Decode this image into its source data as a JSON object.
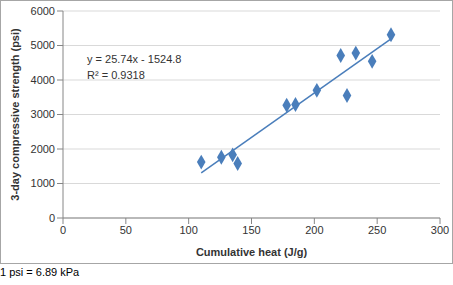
{
  "chart_data": {
    "type": "scatter",
    "x_label": "Cumulative heat (J/g)",
    "y_label": "3-day compressive strength (psi)",
    "x": [
      110,
      126,
      135,
      139,
      178,
      185,
      202,
      221,
      226,
      233,
      246,
      261
    ],
    "values": [
      1620,
      1760,
      1830,
      1580,
      3270,
      3290,
      3700,
      4710,
      3550,
      4780,
      4540,
      5310
    ],
    "color": "#4a7ebb",
    "marker": "diamond",
    "trendline": {
      "x": [
        110,
        261
      ],
      "values": [
        1310,
        5190
      ],
      "color": "#4a7ebb",
      "line_style": "solid"
    },
    "annotations": [
      "y = 25.74x - 1524.8",
      "R² = 0.9318"
    ],
    "footnote": "1 psi = 6.89 kPa",
    "xlim": [
      0,
      300
    ],
    "xticks": [
      0,
      50,
      100,
      150,
      200,
      250,
      300
    ],
    "ylim": [
      0,
      6000
    ],
    "yticks": [
      0,
      1000,
      2000,
      3000,
      4000,
      5000,
      6000
    ],
    "grid": true
  }
}
